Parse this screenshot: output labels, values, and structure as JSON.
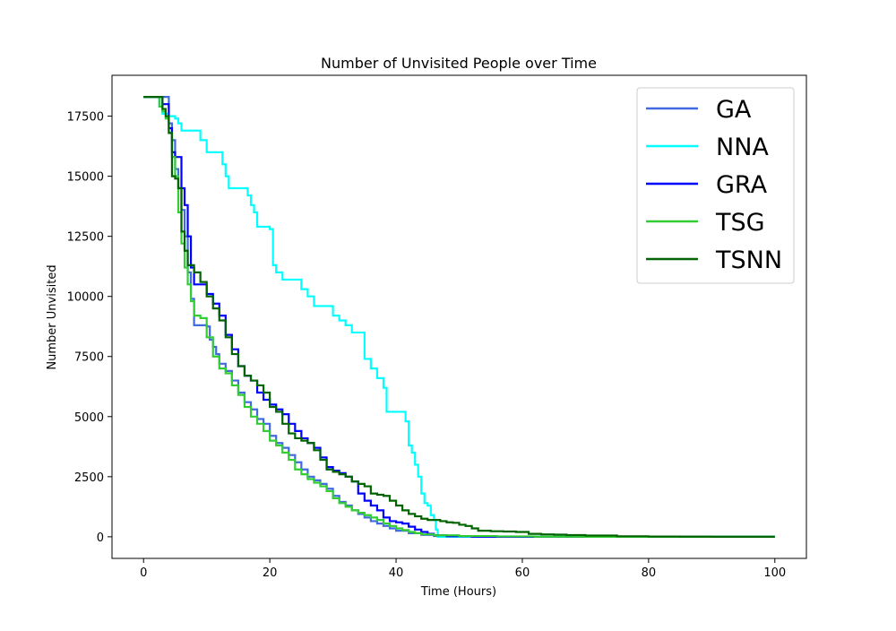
{
  "chart_data": {
    "type": "line",
    "title": "Number of Unvisited People over Time",
    "xlabel": "Time (Hours)",
    "ylabel": "Number Unvisited",
    "xlim": [
      -5,
      105
    ],
    "ylim": [
      -900,
      19200
    ],
    "x_ticks": [
      0,
      20,
      40,
      60,
      80,
      100
    ],
    "y_ticks": [
      0,
      2500,
      5000,
      7500,
      10000,
      12500,
      15000,
      17500
    ],
    "grid": false,
    "legend_position": "upper-right",
    "series": [
      {
        "name": "GA",
        "color": "#4169e1",
        "points": [
          [
            0,
            18300
          ],
          [
            3.5,
            18300
          ],
          [
            4,
            17200
          ],
          [
            4.5,
            16500
          ],
          [
            5,
            15300
          ],
          [
            5.5,
            14500
          ],
          [
            6,
            13600
          ],
          [
            6.5,
            12500
          ],
          [
            7,
            11000
          ],
          [
            7.5,
            9900
          ],
          [
            8,
            8800
          ],
          [
            10,
            8750
          ],
          [
            10.5,
            8200
          ],
          [
            11,
            7900
          ],
          [
            11.5,
            7600
          ],
          [
            12,
            7200
          ],
          [
            13,
            6900
          ],
          [
            14,
            6500
          ],
          [
            15,
            6000
          ],
          [
            16,
            5600
          ],
          [
            17,
            5300
          ],
          [
            18,
            4900
          ],
          [
            19,
            4700
          ],
          [
            20,
            4200
          ],
          [
            21,
            3900
          ],
          [
            22,
            3700
          ],
          [
            23,
            3400
          ],
          [
            24,
            3100
          ],
          [
            25,
            2800
          ],
          [
            26,
            2500
          ],
          [
            27,
            2350
          ],
          [
            28,
            2200
          ],
          [
            29,
            2000
          ],
          [
            30,
            1700
          ],
          [
            31,
            1450
          ],
          [
            32,
            1300
          ],
          [
            33,
            1100
          ],
          [
            34,
            950
          ],
          [
            35,
            800
          ],
          [
            36,
            650
          ],
          [
            37,
            550
          ],
          [
            38,
            450
          ],
          [
            39,
            350
          ],
          [
            40,
            250
          ],
          [
            42,
            150
          ],
          [
            44,
            80
          ],
          [
            46,
            30
          ],
          [
            48,
            10
          ],
          [
            52,
            0
          ],
          [
            100,
            0
          ]
        ]
      },
      {
        "name": "NNA",
        "color": "#00ffff",
        "points": [
          [
            0,
            18300
          ],
          [
            2,
            18300
          ],
          [
            2.5,
            17900
          ],
          [
            3,
            17600
          ],
          [
            4,
            17500
          ],
          [
            5,
            17400
          ],
          [
            5.5,
            17200
          ],
          [
            6,
            16900
          ],
          [
            8,
            16900
          ],
          [
            9,
            16500
          ],
          [
            10,
            16000
          ],
          [
            12,
            16000
          ],
          [
            12.5,
            15500
          ],
          [
            13,
            15000
          ],
          [
            13.5,
            14500
          ],
          [
            16,
            14500
          ],
          [
            16.5,
            14200
          ],
          [
            17,
            13800
          ],
          [
            17.5,
            13500
          ],
          [
            18,
            12900
          ],
          [
            19,
            12900
          ],
          [
            20,
            12800
          ],
          [
            20.5,
            11300
          ],
          [
            21,
            11000
          ],
          [
            22,
            10700
          ],
          [
            24,
            10700
          ],
          [
            25,
            10300
          ],
          [
            26,
            10000
          ],
          [
            27,
            9600
          ],
          [
            29,
            9600
          ],
          [
            30,
            9200
          ],
          [
            31,
            9000
          ],
          [
            32,
            8800
          ],
          [
            33,
            8500
          ],
          [
            34.5,
            8500
          ],
          [
            35,
            7400
          ],
          [
            36,
            7000
          ],
          [
            37,
            6600
          ],
          [
            38,
            6200
          ],
          [
            38.5,
            5200
          ],
          [
            41,
            5200
          ],
          [
            41.5,
            4800
          ],
          [
            42,
            3800
          ],
          [
            42.5,
            3500
          ],
          [
            43,
            3000
          ],
          [
            43.5,
            2500
          ],
          [
            44,
            1800
          ],
          [
            44.5,
            1400
          ],
          [
            45,
            1300
          ],
          [
            45.5,
            900
          ],
          [
            46,
            700
          ],
          [
            46.3,
            300
          ],
          [
            46.6,
            0
          ],
          [
            100,
            0
          ]
        ]
      },
      {
        "name": "GRA",
        "color": "#0000ff",
        "points": [
          [
            0,
            18300
          ],
          [
            2.5,
            18300
          ],
          [
            3,
            18000
          ],
          [
            4,
            17000
          ],
          [
            4.5,
            16000
          ],
          [
            5,
            15800
          ],
          [
            5.5,
            15800
          ],
          [
            6,
            14500
          ],
          [
            6.5,
            13800
          ],
          [
            7,
            12500
          ],
          [
            7.5,
            11200
          ],
          [
            8,
            10500
          ],
          [
            9,
            10500
          ],
          [
            10,
            10100
          ],
          [
            11,
            9700
          ],
          [
            12,
            9200
          ],
          [
            13,
            8400
          ],
          [
            14,
            7800
          ],
          [
            15,
            7100
          ],
          [
            16,
            6700
          ],
          [
            17,
            6500
          ],
          [
            18,
            6000
          ],
          [
            19,
            5700
          ],
          [
            20,
            5500
          ],
          [
            21,
            5300
          ],
          [
            22,
            5100
          ],
          [
            23,
            4700
          ],
          [
            24,
            4400
          ],
          [
            25,
            4100
          ],
          [
            26,
            3900
          ],
          [
            27,
            3700
          ],
          [
            28,
            3300
          ],
          [
            29,
            2900
          ],
          [
            30,
            2750
          ],
          [
            31,
            2650
          ],
          [
            32,
            2500
          ],
          [
            33,
            2300
          ],
          [
            34,
            1800
          ],
          [
            35,
            1500
          ],
          [
            36,
            1300
          ],
          [
            37,
            1100
          ],
          [
            38,
            800
          ],
          [
            39,
            650
          ],
          [
            40,
            600
          ],
          [
            41,
            550
          ],
          [
            42,
            420
          ],
          [
            43,
            300
          ],
          [
            44,
            200
          ],
          [
            45,
            120
          ],
          [
            46,
            60
          ],
          [
            48,
            20
          ],
          [
            52,
            0
          ],
          [
            100,
            0
          ]
        ]
      },
      {
        "name": "TSG",
        "color": "#32cd32",
        "points": [
          [
            0,
            18300
          ],
          [
            2,
            18300
          ],
          [
            2.5,
            17900
          ],
          [
            3,
            17700
          ],
          [
            3.5,
            17400
          ],
          [
            4,
            16800
          ],
          [
            4.5,
            15800
          ],
          [
            5,
            15000
          ],
          [
            5.5,
            13500
          ],
          [
            6,
            12200
          ],
          [
            6.5,
            11200
          ],
          [
            7,
            10500
          ],
          [
            7.5,
            9800
          ],
          [
            8,
            9200
          ],
          [
            9,
            9100
          ],
          [
            10,
            8300
          ],
          [
            11,
            7500
          ],
          [
            12,
            7000
          ],
          [
            13,
            6800
          ],
          [
            14,
            6300
          ],
          [
            15,
            5900
          ],
          [
            16,
            5400
          ],
          [
            17,
            5000
          ],
          [
            18,
            4700
          ],
          [
            19,
            4400
          ],
          [
            20,
            4000
          ],
          [
            21,
            3800
          ],
          [
            22,
            3500
          ],
          [
            23,
            3200
          ],
          [
            24,
            2800
          ],
          [
            25,
            2600
          ],
          [
            26,
            2400
          ],
          [
            27,
            2250
          ],
          [
            28,
            2100
          ],
          [
            29,
            1900
          ],
          [
            30,
            1600
          ],
          [
            31,
            1400
          ],
          [
            32,
            1250
          ],
          [
            33,
            1100
          ],
          [
            34,
            1000
          ],
          [
            35,
            900
          ],
          [
            36,
            800
          ],
          [
            37,
            700
          ],
          [
            38,
            550
          ],
          [
            39,
            450
          ],
          [
            40,
            350
          ],
          [
            41,
            280
          ],
          [
            42,
            200
          ],
          [
            43,
            150
          ],
          [
            44,
            100
          ],
          [
            46,
            60
          ],
          [
            50,
            30
          ],
          [
            56,
            15
          ],
          [
            62,
            5
          ],
          [
            70,
            0
          ],
          [
            100,
            0
          ]
        ]
      },
      {
        "name": "TSNN",
        "color": "#006400",
        "points": [
          [
            0,
            18300
          ],
          [
            2.5,
            18300
          ],
          [
            3,
            17800
          ],
          [
            3.5,
            17500
          ],
          [
            4,
            16800
          ],
          [
            4.5,
            15000
          ],
          [
            5,
            14900
          ],
          [
            5.5,
            14500
          ],
          [
            6,
            12700
          ],
          [
            6.5,
            11900
          ],
          [
            7,
            11300
          ],
          [
            8,
            11000
          ],
          [
            9,
            10600
          ],
          [
            10,
            10000
          ],
          [
            11,
            9500
          ],
          [
            12,
            9000
          ],
          [
            13,
            8300
          ],
          [
            14,
            7600
          ],
          [
            15,
            7100
          ],
          [
            16,
            6700
          ],
          [
            17,
            6500
          ],
          [
            18,
            6300
          ],
          [
            19,
            6000
          ],
          [
            20,
            5400
          ],
          [
            21,
            5200
          ],
          [
            22,
            4700
          ],
          [
            23,
            4300
          ],
          [
            24,
            4100
          ],
          [
            25,
            4000
          ],
          [
            26,
            3900
          ],
          [
            27,
            3600
          ],
          [
            28,
            3200
          ],
          [
            29,
            2800
          ],
          [
            30,
            2700
          ],
          [
            31,
            2600
          ],
          [
            32,
            2500
          ],
          [
            33,
            2300
          ],
          [
            34,
            2200
          ],
          [
            35,
            2100
          ],
          [
            36,
            1800
          ],
          [
            37,
            1750
          ],
          [
            38,
            1700
          ],
          [
            39,
            1500
          ],
          [
            40,
            1300
          ],
          [
            41,
            1100
          ],
          [
            42,
            950
          ],
          [
            43,
            850
          ],
          [
            44,
            750
          ],
          [
            45,
            700
          ],
          [
            46,
            700
          ],
          [
            47,
            650
          ],
          [
            48,
            600
          ],
          [
            49,
            580
          ],
          [
            50,
            500
          ],
          [
            51,
            450
          ],
          [
            52,
            350
          ],
          [
            53,
            250
          ],
          [
            55,
            230
          ],
          [
            57,
            220
          ],
          [
            59,
            200
          ],
          [
            61,
            120
          ],
          [
            63,
            100
          ],
          [
            65,
            90
          ],
          [
            67,
            70
          ],
          [
            70,
            50
          ],
          [
            75,
            20
          ],
          [
            80,
            10
          ],
          [
            85,
            5
          ],
          [
            90,
            0
          ],
          [
            100,
            0
          ]
        ]
      }
    ]
  }
}
